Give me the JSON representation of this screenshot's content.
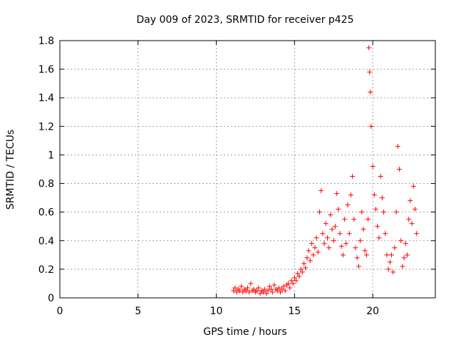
{
  "chart_data": {
    "type": "scatter",
    "title": "Day 009 of 2023, SRMTID for receiver p425",
    "xlabel": "GPS time / hours",
    "ylabel": "SRMTID / TECUs",
    "xlim": [
      0,
      24
    ],
    "ylim": [
      0,
      1.8
    ],
    "x_ticks": [
      0,
      5,
      10,
      15,
      20
    ],
    "x_tick_labels": [
      "0",
      "5",
      "10",
      "15",
      "20"
    ],
    "y_ticks": [
      0,
      0.2,
      0.4,
      0.6,
      0.8,
      1,
      1.2,
      1.4,
      1.6,
      1.8
    ],
    "y_tick_labels": [
      "0",
      "0.2",
      "0.4",
      "0.6",
      "0.8",
      "1",
      "1.2",
      "1.4",
      "1.6",
      "1.8"
    ],
    "grid": true,
    "marker": "+",
    "colors": {
      "series": "#ff0000",
      "grid": "#a0a0a0",
      "axis": "#000000",
      "background": "#ffffff"
    },
    "series": [
      {
        "name": "SRMTID",
        "points": [
          [
            11.1,
            0.05
          ],
          [
            11.2,
            0.07
          ],
          [
            11.3,
            0.04
          ],
          [
            11.4,
            0.06
          ],
          [
            11.5,
            0.05
          ],
          [
            11.6,
            0.08
          ],
          [
            11.7,
            0.04
          ],
          [
            11.8,
            0.06
          ],
          [
            11.9,
            0.05
          ],
          [
            12.0,
            0.07
          ],
          [
            12.1,
            0.04
          ],
          [
            12.2,
            0.1
          ],
          [
            12.3,
            0.05
          ],
          [
            12.4,
            0.06
          ],
          [
            12.5,
            0.04
          ],
          [
            12.6,
            0.05
          ],
          [
            12.7,
            0.07
          ],
          [
            12.8,
            0.03
          ],
          [
            12.9,
            0.05
          ],
          [
            13.0,
            0.04
          ],
          [
            13.1,
            0.06
          ],
          [
            13.2,
            0.03
          ],
          [
            13.3,
            0.05
          ],
          [
            13.4,
            0.08
          ],
          [
            13.5,
            0.06
          ],
          [
            13.6,
            0.04
          ],
          [
            13.7,
            0.09
          ],
          [
            13.8,
            0.06
          ],
          [
            13.9,
            0.05
          ],
          [
            14.0,
            0.07
          ],
          [
            14.1,
            0.04
          ],
          [
            14.2,
            0.06
          ],
          [
            14.3,
            0.08
          ],
          [
            14.4,
            0.05
          ],
          [
            14.5,
            0.09
          ],
          [
            14.6,
            0.1
          ],
          [
            14.7,
            0.07
          ],
          [
            14.8,
            0.12
          ],
          [
            14.9,
            0.1
          ],
          [
            15.0,
            0.14
          ],
          [
            15.1,
            0.12
          ],
          [
            15.2,
            0.17
          ],
          [
            15.3,
            0.15
          ],
          [
            15.4,
            0.2
          ],
          [
            15.5,
            0.18
          ],
          [
            15.6,
            0.24
          ],
          [
            15.7,
            0.21
          ],
          [
            15.8,
            0.28
          ],
          [
            15.9,
            0.33
          ],
          [
            16.0,
            0.26
          ],
          [
            16.1,
            0.38
          ],
          [
            16.2,
            0.3
          ],
          [
            16.3,
            0.35
          ],
          [
            16.4,
            0.42
          ],
          [
            16.5,
            0.32
          ],
          [
            16.6,
            0.6
          ],
          [
            16.7,
            0.75
          ],
          [
            16.8,
            0.45
          ],
          [
            16.9,
            0.38
          ],
          [
            17.0,
            0.52
          ],
          [
            17.1,
            0.42
          ],
          [
            17.2,
            0.35
          ],
          [
            17.3,
            0.58
          ],
          [
            17.4,
            0.48
          ],
          [
            17.5,
            0.4
          ],
          [
            17.6,
            0.5
          ],
          [
            17.7,
            0.73
          ],
          [
            17.8,
            0.62
          ],
          [
            17.9,
            0.45
          ],
          [
            18.0,
            0.36
          ],
          [
            18.1,
            0.3
          ],
          [
            18.2,
            0.55
          ],
          [
            18.3,
            0.38
          ],
          [
            18.4,
            0.65
          ],
          [
            18.5,
            0.45
          ],
          [
            18.6,
            0.72
          ],
          [
            18.7,
            0.85
          ],
          [
            18.8,
            0.55
          ],
          [
            18.9,
            0.35
          ],
          [
            19.0,
            0.28
          ],
          [
            19.1,
            0.22
          ],
          [
            19.2,
            0.4
          ],
          [
            19.3,
            0.6
          ],
          [
            19.4,
            0.48
          ],
          [
            19.5,
            0.33
          ],
          [
            19.6,
            0.3
          ],
          [
            19.7,
            0.55
          ],
          [
            19.75,
            1.75
          ],
          [
            19.8,
            1.58
          ],
          [
            19.85,
            1.44
          ],
          [
            19.9,
            1.2
          ],
          [
            20.0,
            0.92
          ],
          [
            20.1,
            0.72
          ],
          [
            20.2,
            0.62
          ],
          [
            20.3,
            0.5
          ],
          [
            20.4,
            0.42
          ],
          [
            20.5,
            0.85
          ],
          [
            20.6,
            0.7
          ],
          [
            20.7,
            0.6
          ],
          [
            20.8,
            0.45
          ],
          [
            20.9,
            0.3
          ],
          [
            21.0,
            0.2
          ],
          [
            21.1,
            0.25
          ],
          [
            21.2,
            0.3
          ],
          [
            21.3,
            0.18
          ],
          [
            21.4,
            0.35
          ],
          [
            21.5,
            0.6
          ],
          [
            21.6,
            1.06
          ],
          [
            21.7,
            0.9
          ],
          [
            21.8,
            0.4
          ],
          [
            21.9,
            0.22
          ],
          [
            22.0,
            0.28
          ],
          [
            22.1,
            0.38
          ],
          [
            22.2,
            0.3
          ],
          [
            22.3,
            0.55
          ],
          [
            22.4,
            0.68
          ],
          [
            22.5,
            0.52
          ],
          [
            22.6,
            0.78
          ],
          [
            22.7,
            0.62
          ],
          [
            22.8,
            0.45
          ]
        ]
      }
    ]
  }
}
